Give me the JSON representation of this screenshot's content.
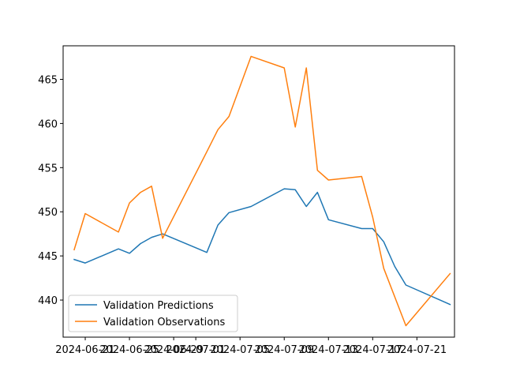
{
  "chart_data": {
    "type": "line",
    "title": "",
    "xlabel": "",
    "ylabel": "",
    "x_ticks": [
      "2024-06-21",
      "2024-06-25",
      "2024-06-29",
      "2024-07-01",
      "2024-07-05",
      "2024-07-09",
      "2024-07-13",
      "2024-07-17",
      "2024-07-21"
    ],
    "y_ticks": [
      440,
      445,
      450,
      455,
      460,
      465
    ],
    "xlim": [
      "2024-06-19",
      "2024-07-24"
    ],
    "ylim": [
      435.8,
      468.8
    ],
    "grid": false,
    "legend_position": "lower-left",
    "series": [
      {
        "name": "Validation Predictions",
        "color": "#1f77b4",
        "x": [
          "2024-06-20",
          "2024-06-21",
          "2024-06-24",
          "2024-06-25",
          "2024-06-26",
          "2024-06-27",
          "2024-06-28",
          "2024-07-02",
          "2024-07-03",
          "2024-07-04",
          "2024-07-06",
          "2024-07-09",
          "2024-07-10",
          "2024-07-11",
          "2024-07-12",
          "2024-07-13",
          "2024-07-16",
          "2024-07-17",
          "2024-07-18",
          "2024-07-19",
          "2024-07-20",
          "2024-07-24"
        ],
        "y": [
          444.6,
          444.2,
          445.8,
          445.3,
          446.4,
          447.1,
          447.5,
          445.4,
          448.5,
          449.9,
          450.6,
          452.6,
          452.5,
          450.6,
          452.2,
          449.1,
          448.1,
          448.1,
          446.6,
          443.8,
          441.7,
          439.5
        ]
      },
      {
        "name": "Validation Observations",
        "color": "#ff7f0e",
        "x": [
          "2024-06-20",
          "2024-06-21",
          "2024-06-24",
          "2024-06-25",
          "2024-06-26",
          "2024-06-27",
          "2024-06-28",
          "2024-07-02",
          "2024-07-03",
          "2024-07-04",
          "2024-07-06",
          "2024-07-09",
          "2024-07-10",
          "2024-07-11",
          "2024-07-12",
          "2024-07-13",
          "2024-07-16",
          "2024-07-17",
          "2024-07-18",
          "2024-07-20",
          "2024-07-24"
        ],
        "y": [
          445.7,
          449.8,
          447.7,
          451.0,
          452.2,
          452.9,
          447.0,
          456.8,
          459.3,
          460.8,
          467.6,
          466.3,
          459.6,
          466.3,
          454.7,
          453.6,
          454.0,
          449.4,
          443.6,
          437.1,
          443.0
        ]
      }
    ]
  }
}
